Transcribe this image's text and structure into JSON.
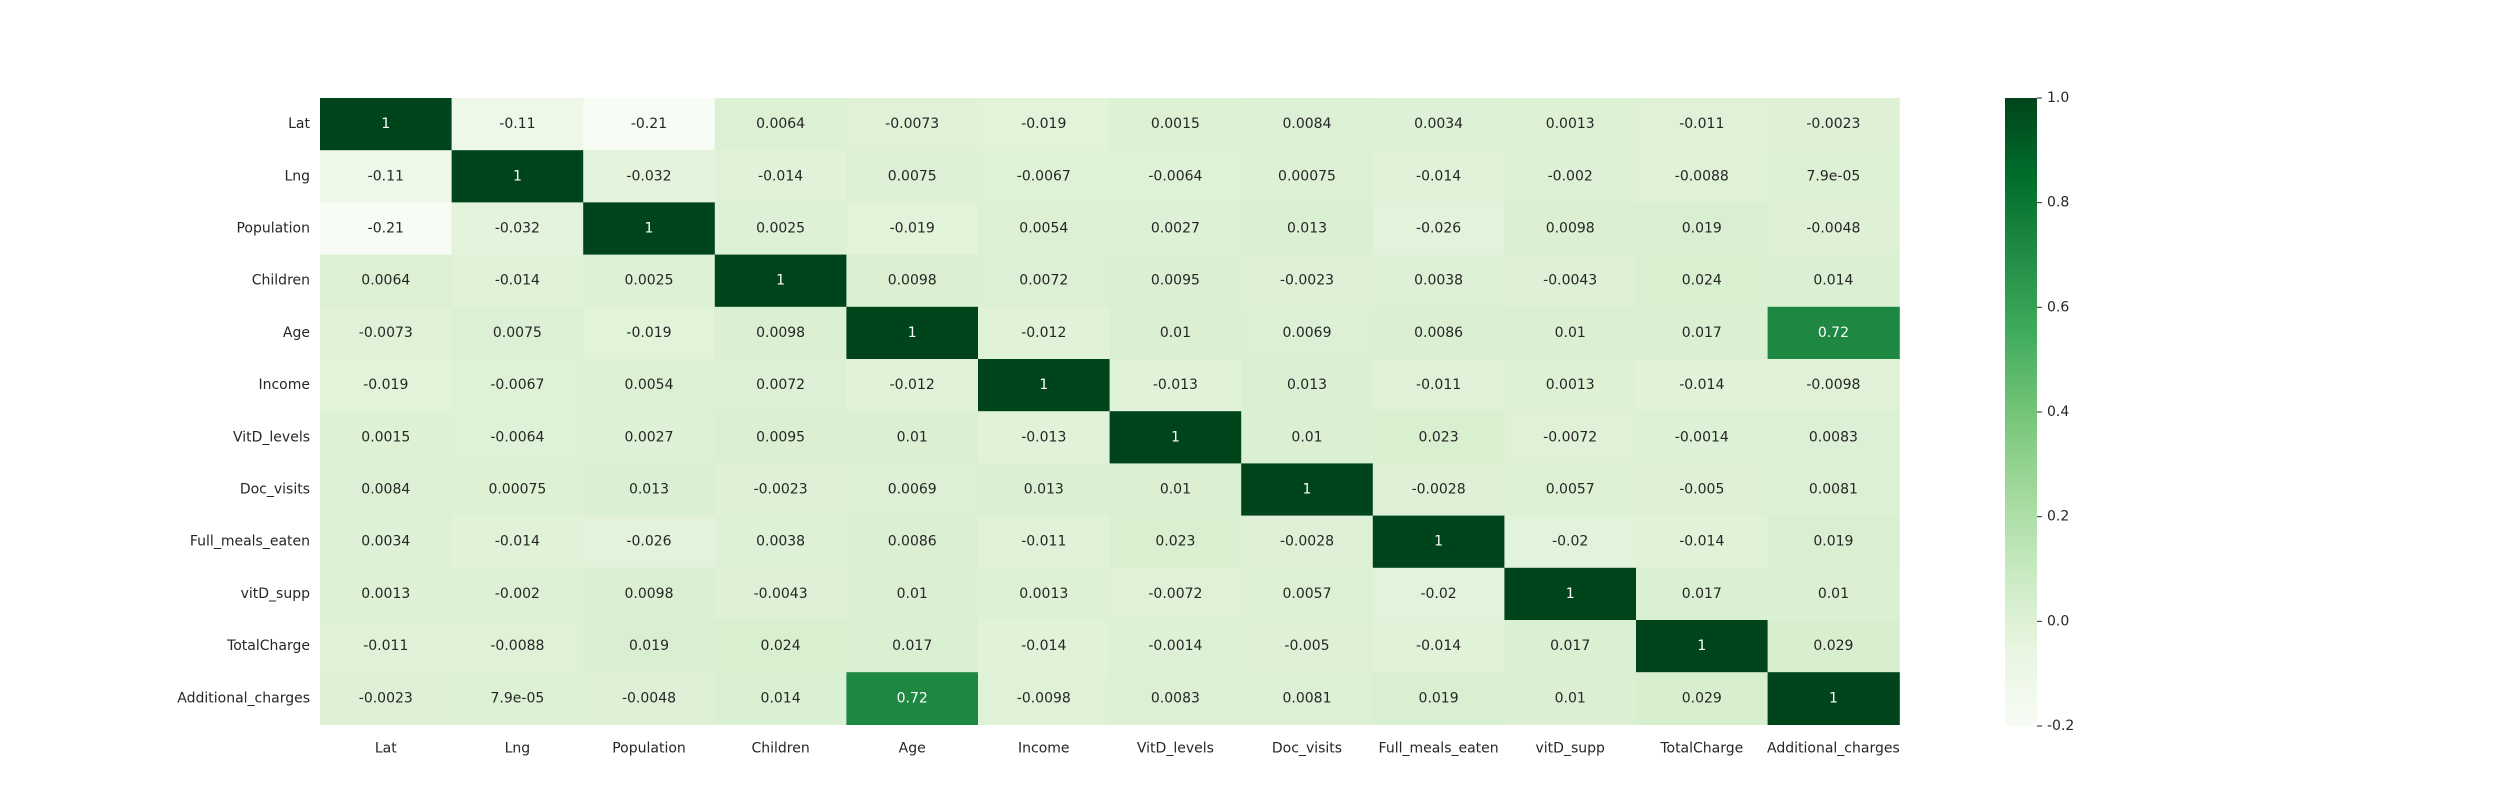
{
  "chart_data": {
    "type": "heatmap",
    "title": "",
    "labels": [
      "Lat",
      "Lng",
      "Population",
      "Children",
      "Age",
      "Income",
      "VitD_levels",
      "Doc_visits",
      "Full_meals_eaten",
      "vitD_supp",
      "TotalCharge",
      "Additional_charges"
    ],
    "cell_labels": [
      [
        "1",
        "-0.11",
        "-0.21",
        "0.0064",
        "-0.0073",
        "-0.019",
        "0.0015",
        "0.0084",
        "0.0034",
        "0.0013",
        "-0.011",
        "-0.0023"
      ],
      [
        "-0.11",
        "1",
        "-0.032",
        "-0.014",
        "0.0075",
        "-0.0067",
        "-0.0064",
        "0.00075",
        "-0.014",
        "-0.002",
        "-0.0088",
        "7.9e-05"
      ],
      [
        "-0.21",
        "-0.032",
        "1",
        "0.0025",
        "-0.019",
        "0.0054",
        "0.0027",
        "0.013",
        "-0.026",
        "0.0098",
        "0.019",
        "-0.0048"
      ],
      [
        "0.0064",
        "-0.014",
        "0.0025",
        "1",
        "0.0098",
        "0.0072",
        "0.0095",
        "-0.0023",
        "0.0038",
        "-0.0043",
        "0.024",
        "0.014"
      ],
      [
        "-0.0073",
        "0.0075",
        "-0.019",
        "0.0098",
        "1",
        "-0.012",
        "0.01",
        "0.0069",
        "0.0086",
        "0.01",
        "0.017",
        "0.72"
      ],
      [
        "-0.019",
        "-0.0067",
        "0.0054",
        "0.0072",
        "-0.012",
        "1",
        "-0.013",
        "0.013",
        "-0.011",
        "0.0013",
        "-0.014",
        "-0.0098"
      ],
      [
        "0.0015",
        "-0.0064",
        "0.0027",
        "0.0095",
        "0.01",
        "-0.013",
        "1",
        "0.01",
        "0.023",
        "-0.0072",
        "-0.0014",
        "0.0083"
      ],
      [
        "0.0084",
        "0.00075",
        "0.013",
        "-0.0023",
        "0.0069",
        "0.013",
        "0.01",
        "1",
        "-0.0028",
        "0.0057",
        "-0.005",
        "0.0081"
      ],
      [
        "0.0034",
        "-0.014",
        "-0.026",
        "0.0038",
        "0.0086",
        "-0.011",
        "0.023",
        "-0.0028",
        "1",
        "-0.02",
        "-0.014",
        "0.019"
      ],
      [
        "0.0013",
        "-0.002",
        "0.0098",
        "-0.0043",
        "0.01",
        "0.0013",
        "-0.0072",
        "0.0057",
        "-0.02",
        "1",
        "0.017",
        "0.01"
      ],
      [
        "-0.011",
        "-0.0088",
        "0.019",
        "0.024",
        "0.017",
        "-0.014",
        "-0.0014",
        "-0.005",
        "-0.014",
        "0.017",
        "1",
        "0.029"
      ],
      [
        "-0.0023",
        "7.9e-05",
        "-0.0048",
        "0.014",
        "0.72",
        "-0.0098",
        "0.0083",
        "0.0081",
        "0.019",
        "0.01",
        "0.029",
        "1"
      ]
    ],
    "colorbar": {
      "min": -0.2,
      "max": 1.0,
      "ticks": [
        "-0.2",
        "0.0",
        "0.2",
        "0.4",
        "0.6",
        "0.8",
        "1.0"
      ],
      "colormap": "Greens"
    }
  }
}
